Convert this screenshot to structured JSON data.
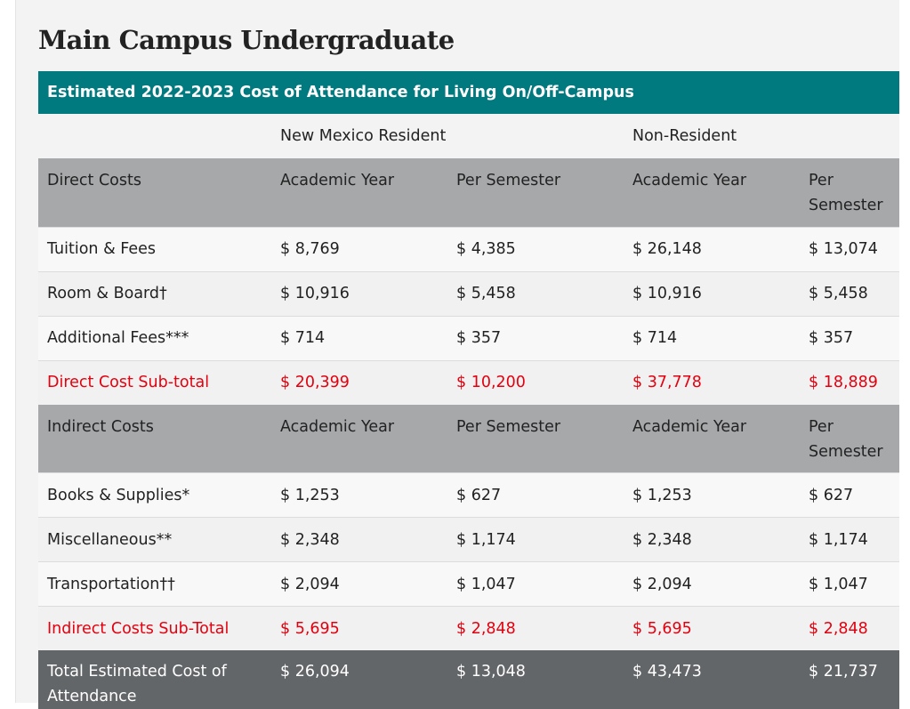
{
  "title": "Main Campus Undergraduate",
  "table_title": "Estimated 2022-2023 Cost of Attendance for Living On/Off-Campus",
  "groups": [
    "New Mexico Resident",
    "Non-Resident"
  ],
  "direct_header": [
    "Direct Costs",
    "Academic Year",
    "Per Semester",
    "Academic Year",
    "Per Semester"
  ],
  "direct_rows": [
    [
      "Tuition & Fees",
      "$ 8,769",
      "$ 4,385",
      "$ 26,148",
      "$ 13,074"
    ],
    [
      "Room & Board†",
      "$ 10,916",
      "$ 5,458",
      "$ 10,916",
      "$ 5,458"
    ],
    [
      "Additional Fees***",
      "$ 714",
      "$ 357",
      "$ 714",
      "$ 357"
    ]
  ],
  "direct_subtotal": [
    "Direct Cost Sub-total",
    "$ 20,399",
    "$ 10,200",
    "$ 37,778",
    "$ 18,889"
  ],
  "indirect_header": [
    "Indirect Costs",
    "Academic Year",
    "Per Semester",
    "Academic Year",
    "Per Semester"
  ],
  "indirect_rows": [
    [
      "Books & Supplies*",
      "$ 1,253",
      "$ 627",
      "$ 1,253",
      "$ 627"
    ],
    [
      "Miscellaneous**",
      "$ 2,348",
      "$ 1,174",
      "$ 2,348",
      "$ 1,174"
    ],
    [
      "Transportation††",
      "$ 2,094",
      "$ 1,047",
      "$ 2,094",
      "$ 1,047"
    ]
  ],
  "indirect_subtotal": [
    "Indirect Costs Sub-Total",
    "$ 5,695",
    "$ 2,848",
    "$ 5,695",
    "$ 2,848"
  ],
  "total": [
    "Total Estimated Cost of Attendance",
    "$ 26,094",
    "$ 13,048",
    "$ 43,473",
    "$ 21,737"
  ]
}
